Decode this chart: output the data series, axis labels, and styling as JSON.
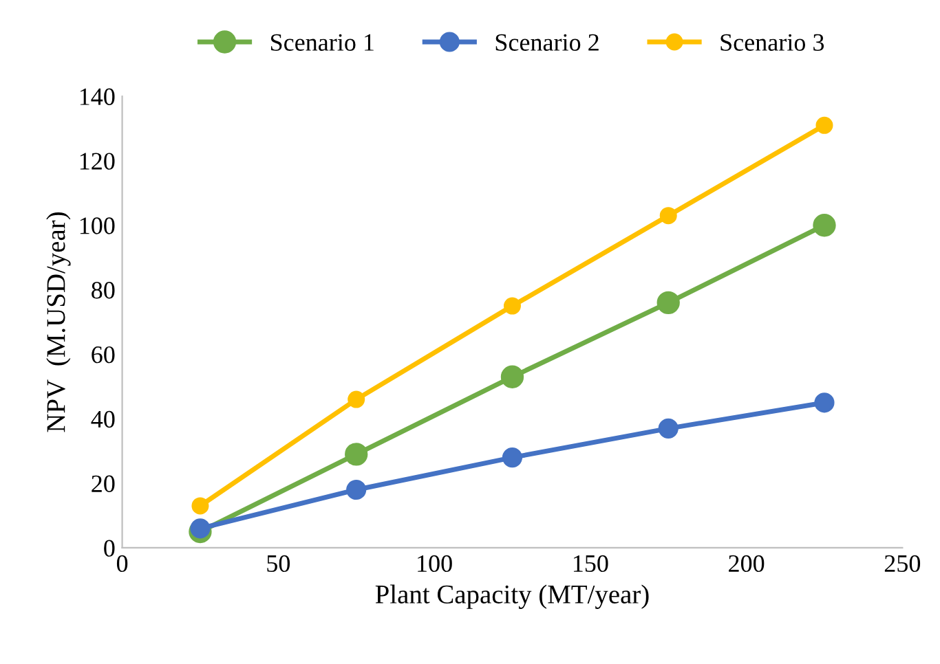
{
  "chart_data": {
    "type": "line",
    "xlabel": "Plant Capacity (MT/year)",
    "ylabel": "NPV  (M.USD/year)",
    "x": [
      25,
      75,
      125,
      175,
      225
    ],
    "series": [
      {
        "name": "Scenario 1",
        "color": "#70ad47",
        "values": [
          5,
          29,
          53,
          76,
          100
        ]
      },
      {
        "name": "Scenario 2",
        "color": "#4472c4",
        "values": [
          6,
          18,
          28,
          37,
          45
        ]
      },
      {
        "name": "Scenario 3",
        "color": "#ffc000",
        "values": [
          13,
          46,
          75,
          103,
          131
        ]
      }
    ],
    "xlim": [
      0,
      250
    ],
    "xticks": [
      0,
      50,
      100,
      150,
      200,
      250
    ],
    "ylim": [
      0,
      140
    ],
    "yticks": [
      0,
      20,
      40,
      60,
      80,
      100,
      120,
      140
    ],
    "grid": false,
    "legend": "top",
    "marker": "circle",
    "line_style": "solid"
  }
}
